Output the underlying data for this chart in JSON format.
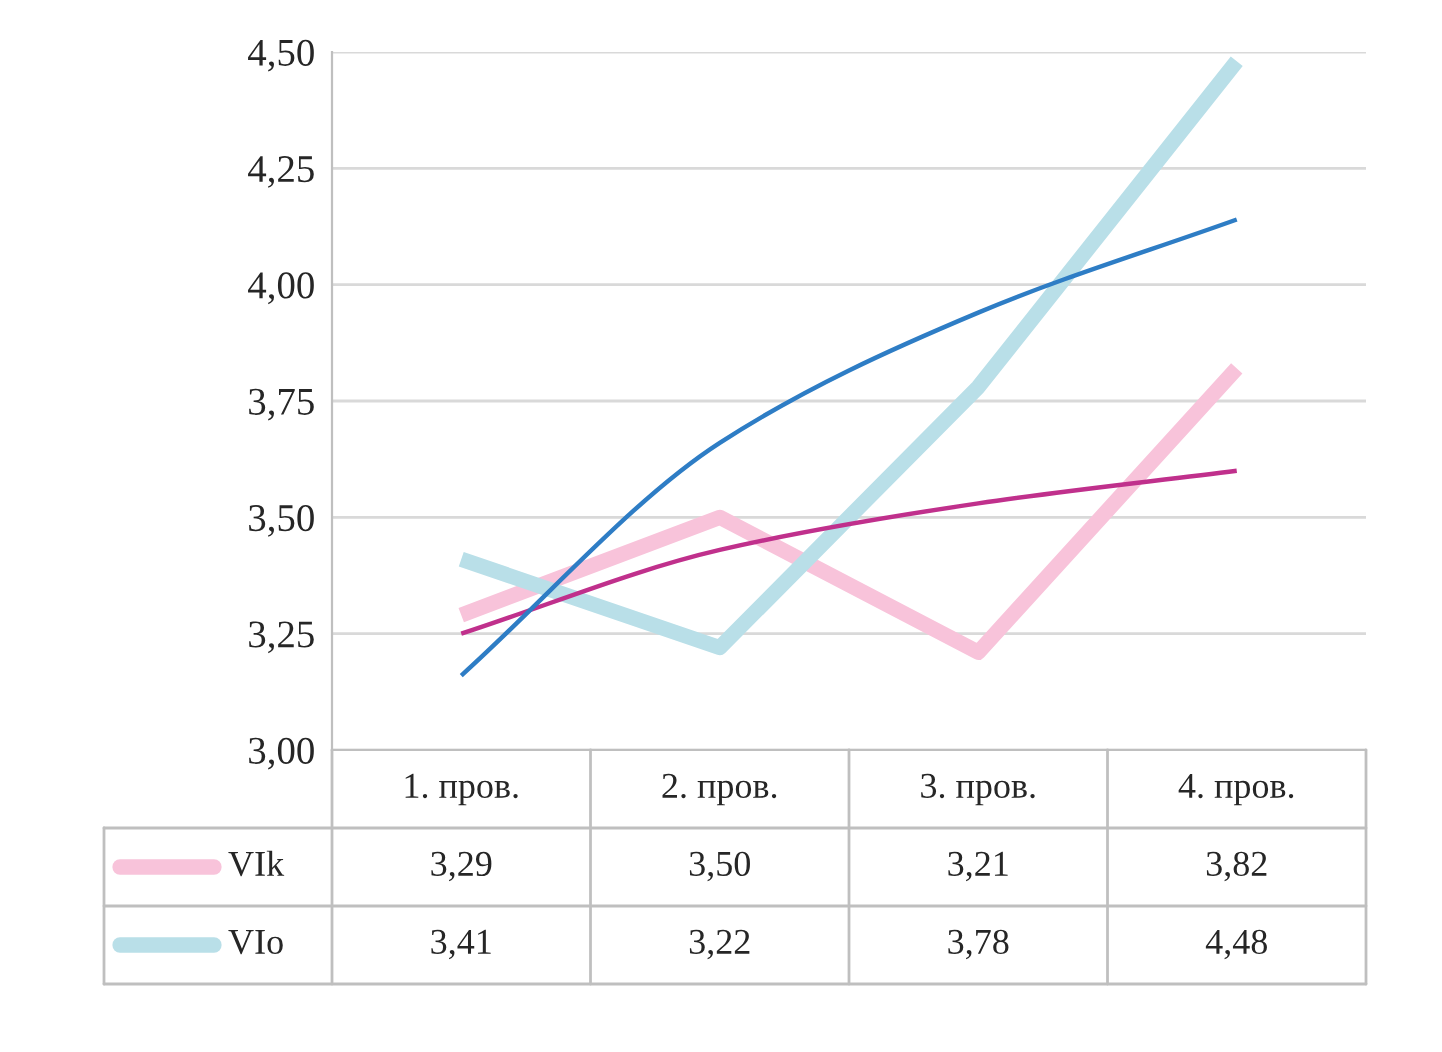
{
  "chart_data": {
    "type": "line",
    "categories": [
      "1. пров.",
      "2. пров.",
      "3. пров.",
      "4. пров."
    ],
    "ylim": [
      3.0,
      4.5
    ],
    "yticks": [
      {
        "value": 3.0,
        "label": "3,00"
      },
      {
        "value": 3.25,
        "label": "3,25"
      },
      {
        "value": 3.5,
        "label": "3,50"
      },
      {
        "value": 3.75,
        "label": "3,75"
      },
      {
        "value": 4.0,
        "label": "4,00"
      },
      {
        "value": 4.25,
        "label": "4,25"
      },
      {
        "value": 4.5,
        "label": "4,50"
      }
    ],
    "grid": "y",
    "legend": "bottom",
    "line_style": "solid",
    "marker": "none",
    "series": [
      {
        "name": "VIk",
        "color": "#f8c3da",
        "values": [
          3.29,
          3.5,
          3.21,
          3.82
        ],
        "value_labels": [
          "3,29",
          "3,50",
          "3,21",
          "3,82"
        ]
      },
      {
        "name": "VIo",
        "color": "#b9dfe8",
        "values": [
          3.41,
          3.22,
          3.78,
          4.48
        ],
        "value_labels": [
          "3,41",
          "3,22",
          "3,78",
          "4,48"
        ]
      },
      {
        "type": "line",
        "color": "#c0308c",
        "values": [
          3.25,
          3.43,
          3.53,
          3.6
        ]
      },
      {
        "type": "line",
        "color": "#2e7dc5",
        "values": [
          3.16,
          3.66,
          3.94,
          4.14
        ]
      }
    ]
  }
}
